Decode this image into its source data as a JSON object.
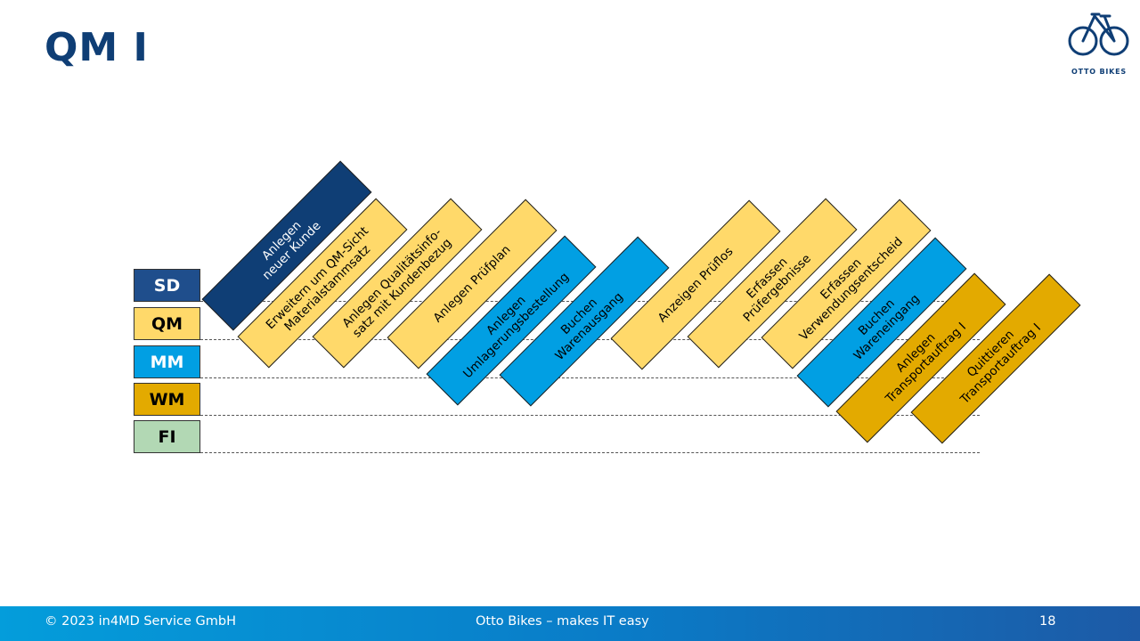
{
  "title": "QM I",
  "logo": {
    "icon": "bicycle-icon",
    "text": "OTTO BIKES",
    "color": "#0f3e75"
  },
  "modules": [
    {
      "id": "sd",
      "label": "SD",
      "bg": "#1f4e8c",
      "fg": "#ffffff"
    },
    {
      "id": "qm",
      "label": "QM",
      "bg": "#ffd96a",
      "fg": "#000000"
    },
    {
      "id": "mm",
      "label": "MM",
      "bg": "#019fe3",
      "fg": "#ffffff"
    },
    {
      "id": "wm",
      "label": "WM",
      "bg": "#e3aa00",
      "fg": "#000000"
    },
    {
      "id": "fi",
      "label": "FI",
      "bg": "#b2d8b4",
      "fg": "#000000"
    }
  ],
  "steps": [
    {
      "text": "Anlegen\nneuer Kunde",
      "module": "SD",
      "bg": "#0f3e75",
      "fg": "#ffffff"
    },
    {
      "text": "Erweitern um QM-Sicht\nMaterialstammsatz",
      "module": "QM",
      "bg": "#ffd96a",
      "fg": "#000000"
    },
    {
      "text": "Anlegen Qualitätsinfo-\nsatz mit Kundenbezug",
      "module": "QM",
      "bg": "#ffd96a",
      "fg": "#000000"
    },
    {
      "text": "Anlegen Prüfplan",
      "module": "QM",
      "bg": "#ffd96a",
      "fg": "#000000"
    },
    {
      "text": "Anlegen\nUmlagerungsbestellung",
      "module": "MM",
      "bg": "#019fe3",
      "fg": "#000000"
    },
    {
      "text": "Buchen\nWarenausgang",
      "module": "MM",
      "bg": "#019fe3",
      "fg": "#000000"
    },
    {
      "text": "Anzeigen Prüflos",
      "module": "QM",
      "bg": "#ffd96a",
      "fg": "#000000"
    },
    {
      "text": "Erfassen\nPrüfergebnisse",
      "module": "QM",
      "bg": "#ffd96a",
      "fg": "#000000"
    },
    {
      "text": "Erfassen\nVerwendungsentscheid",
      "module": "QM",
      "bg": "#ffd96a",
      "fg": "#000000"
    },
    {
      "text": "Buchen\nWareneingang",
      "module": "MM",
      "bg": "#019fe3",
      "fg": "#000000"
    },
    {
      "text": "Anlegen\nTransportauftrag I",
      "module": "WM",
      "bg": "#e3aa00",
      "fg": "#000000"
    },
    {
      "text": "Quittieren\nTransportauftrag I",
      "module": "WM",
      "bg": "#e3aa00",
      "fg": "#000000"
    }
  ],
  "footer": {
    "copyright": "© 2023 in4MD Service GmbH",
    "slogan": "Otto Bikes – makes IT easy",
    "page": "18"
  }
}
